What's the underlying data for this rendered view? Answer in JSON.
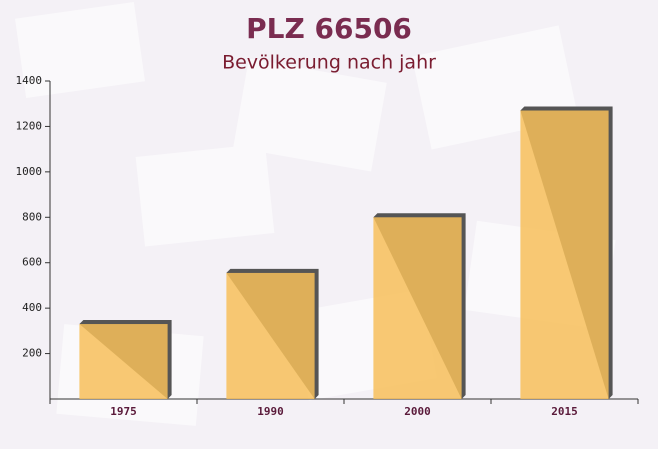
{
  "chart_data": {
    "type": "bar",
    "title": "PLZ 66506",
    "subtitle": "Bevölkerung nach jahr",
    "categories": [
      "1975",
      "1990",
      "2000",
      "2015"
    ],
    "values": [
      330,
      555,
      800,
      1270
    ],
    "color": "#f7bf5a",
    "ylim": [
      0,
      1400
    ],
    "yticks": [
      200,
      400,
      600,
      800,
      1000,
      1200,
      1400
    ],
    "grid": false
  }
}
